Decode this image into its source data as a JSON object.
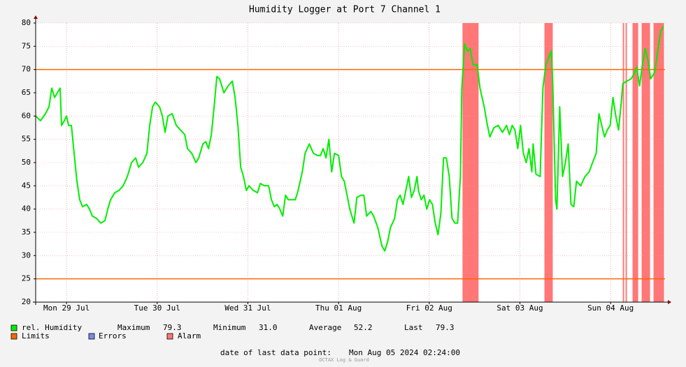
{
  "chart_data": {
    "type": "line",
    "title": "Humidity Logger at Port 7 Channel 1",
    "x": [
      29.16,
      29.214,
      29.268,
      29.307,
      29.337,
      29.368,
      29.399,
      29.43,
      29.445,
      29.476,
      29.5,
      29.523,
      29.554,
      29.584,
      29.615,
      29.646,
      29.677,
      29.723,
      29.754,
      29.785,
      29.831,
      29.878,
      29.924,
      29.955,
      29.986,
      30.032,
      30.078,
      30.125,
      30.171,
      30.217,
      30.263,
      30.294,
      30.341,
      30.387,
      30.418,
      30.449,
      30.479,
      30.526,
      30.557,
      30.587,
      30.618,
      30.665,
      30.711,
      30.757,
      30.804,
      30.834,
      30.881,
      30.927,
      30.958,
      31.004,
      31.035,
      31.066,
      31.097,
      31.128,
      31.158,
      31.189,
      31.236,
      31.282,
      31.328,
      31.359,
      31.39,
      31.421,
      31.452,
      31.483,
      31.513,
      31.56,
      31.606,
      31.637,
      31.683,
      31.729,
      31.76,
      31.791,
      31.822,
      31.853,
      31.884,
      31.915,
      31.945,
      31.992,
      32.023,
      32.054,
      32.1,
      32.131,
      32.177,
      32.223,
      32.269,
      32.3,
      32.331,
      32.362,
      32.393,
      32.424,
      32.455,
      32.501,
      32.532,
      32.563,
      32.594,
      32.624,
      32.655,
      32.671,
      32.702,
      32.748,
      32.779,
      32.81,
      32.856,
      32.887,
      32.933,
      32.979,
      33.01,
      33.041,
      33.072,
      33.118,
      33.149,
      33.18,
      33.211,
      33.242,
      33.273,
      33.304,
      33.334,
      33.365,
      33.381,
      33.412,
      33.442,
      33.473,
      33.504,
      33.535,
      33.566,
      33.597,
      33.628,
      33.658,
      33.689,
      33.72,
      33.751,
      33.782,
      33.813,
      33.844,
      33.859,
      33.89,
      33.921,
      33.952,
      33.983,
      34.029,
      34.06,
      34.106,
      34.137,
      34.168,
      34.214,
      34.26,
      34.307,
      34.353,
      34.384,
      34.415,
      34.445,
      34.476,
      34.507,
      34.538,
      34.569,
      34.6,
      34.631,
      34.646,
      34.677,
      34.723,
      34.754,
      34.785,
      34.816,
      34.847,
      34.862,
      34.893,
      34.908,
      34.939,
      34.97,
      35.001,
      35.032,
      35.063,
      35.094,
      35.124,
      35.171,
      35.217,
      35.263,
      35.31,
      35.341,
      35.371,
      35.402,
      35.433,
      35.464,
      35.495,
      35.526,
      35.557,
      35.587,
      35.618,
      35.634,
      35.68,
      35.726,
      35.757,
      35.788,
      35.819,
      35.85,
      35.881,
      35.912,
      35.942,
      35.989,
      36.02,
      36.05,
      36.081
    ],
    "series": [
      {
        "name": "rel. Humidity",
        "color": "#00ee00",
        "values": [
          60,
          59,
          60.5,
          62,
          66,
          64,
          65,
          66,
          58,
          59,
          60,
          58,
          58,
          52,
          46,
          42,
          40.5,
          41,
          40,
          38.5,
          38,
          37,
          37.5,
          40,
          42,
          43.5,
          44,
          45,
          47,
          50,
          51,
          49,
          50,
          52,
          58,
          62,
          63,
          62,
          60,
          56.5,
          60,
          60.5,
          58,
          57,
          56,
          53,
          52,
          50,
          51,
          54,
          54.5,
          53,
          56,
          62,
          68.5,
          68,
          65,
          66.5,
          67.5,
          64,
          58,
          49,
          47,
          44,
          45,
          44,
          43.5,
          45.5,
          45,
          45,
          42,
          40.5,
          41,
          40,
          38.5,
          43,
          42,
          42,
          42,
          44,
          48,
          52,
          54,
          52,
          51.5,
          51.5,
          53,
          51,
          55,
          48,
          52,
          51.5,
          47,
          46,
          43,
          40,
          38,
          37,
          42.5,
          43,
          43,
          38.5,
          39.5,
          38.5,
          36,
          32,
          31,
          33,
          36,
          38,
          42,
          43,
          41,
          44,
          47,
          42.5,
          44,
          47,
          44,
          42,
          43,
          40,
          42,
          41,
          37,
          34.5,
          39,
          51,
          51,
          47,
          38,
          37,
          37,
          47,
          66,
          75.5,
          74,
          74.5,
          71,
          71,
          66,
          62,
          58.5,
          55.5,
          57.5,
          58,
          56.5,
          58,
          56,
          58,
          57,
          53,
          58,
          52,
          50,
          53,
          48,
          54,
          47.5,
          47,
          66,
          71,
          72.5,
          74,
          67,
          42,
          40,
          62,
          47,
          50,
          54,
          41,
          40.5,
          46,
          45,
          47,
          48,
          50.5,
          52,
          60.5,
          58,
          55.5,
          57,
          58,
          64,
          60,
          57,
          63,
          67,
          67.5,
          68,
          69,
          70.5,
          66.5,
          71,
          74.5,
          72,
          68,
          69.5,
          74,
          78,
          79.3
        ]
      }
    ],
    "limits": {
      "name": "Limits",
      "color": "#ff6600",
      "values": [
        25,
        70
      ]
    },
    "errors": {
      "name": "Errors",
      "color": "#7a88f0"
    },
    "alarm": {
      "name": "Alarm",
      "color": "#ff7777",
      "ranges": [
        [
          33.867,
          34.044
        ],
        [
          34.77,
          34.862
        ],
        [
          35.634,
          35.649
        ],
        [
          35.665,
          35.68
        ],
        [
          35.742,
          35.804
        ],
        [
          35.842,
          35.935
        ],
        [
          35.973,
          36.089
        ]
      ]
    },
    "stats": [
      {
        "label": "Maximum",
        "value": "79.3"
      },
      {
        "label": "Minimum",
        "value": "31.0"
      },
      {
        "label": "Average",
        "value": "52.2"
      },
      {
        "label": "Last",
        "value": "79.3"
      }
    ],
    "xlim": [
      29.16,
      36.1
    ],
    "xticks": [
      {
        "value": 29.5,
        "label": "Mon 29 Jul"
      },
      {
        "value": 30.5,
        "label": "Tue 30 Jul"
      },
      {
        "value": 31.5,
        "label": "Wed 31 Jul"
      },
      {
        "value": 32.5,
        "label": "Thu 01 Aug"
      },
      {
        "value": 33.5,
        "label": "Fri 02 Aug"
      },
      {
        "value": 34.5,
        "label": "Sat 03 Aug"
      },
      {
        "value": 35.5,
        "label": "Sun 04 Aug"
      }
    ],
    "ylim": [
      20,
      80
    ],
    "yticks": [
      20,
      25,
      30,
      35,
      40,
      45,
      50,
      55,
      60,
      65,
      70,
      75,
      80
    ],
    "grid": true,
    "footer": {
      "label": "date of last data point:",
      "value": "Mon Aug 05 2024 02:24:00"
    },
    "watermark": "OCTAX Log & Guard"
  }
}
